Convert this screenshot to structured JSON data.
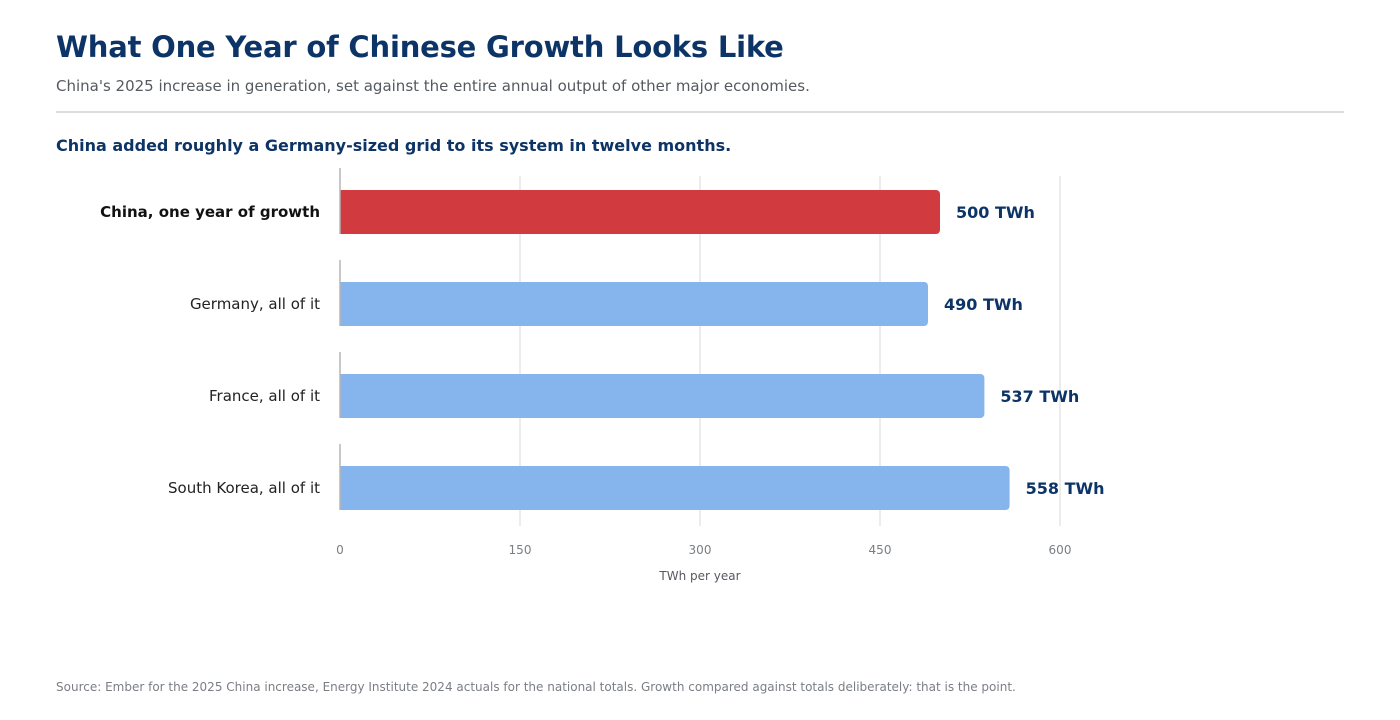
{
  "header": {
    "title": "What One Year of Chinese Growth Looks Like",
    "subtitle": "China's 2025 increase in generation, set against the entire annual output of other major economies.",
    "headline": "China added roughly a Germany-sized grid to its system in twelve months."
  },
  "footer": {
    "source": "Source: Ember for the 2025 China increase, Energy Institute 2024 actuals for the national totals. Growth compared against totals deliberately: that is the point."
  },
  "chart_data": {
    "type": "bar",
    "orientation": "horizontal",
    "categories": [
      "China, one year of growth",
      "Germany, all of it",
      "France, all of it",
      "South Korea, all of it"
    ],
    "values": [
      500,
      490,
      537,
      558
    ],
    "value_labels": [
      "500 TWh",
      "490 TWh",
      "537 TWh",
      "558 TWh"
    ],
    "highlight_index": 0,
    "colors": {
      "highlight": "#d13b3f",
      "default": "#86b5ee",
      "value_label": "#0d3466",
      "grid": "#e6e6e6",
      "axis": "#b5b5b5",
      "tick_label": "#7a7f85"
    },
    "xlabel": "TWh per year",
    "xlim": [
      0,
      600
    ],
    "xticks": [
      0,
      150,
      300,
      450,
      600
    ],
    "xtick_labels": [
      "0",
      "150",
      "300",
      "450",
      "600"
    ],
    "grid": true,
    "legend": "none"
  }
}
